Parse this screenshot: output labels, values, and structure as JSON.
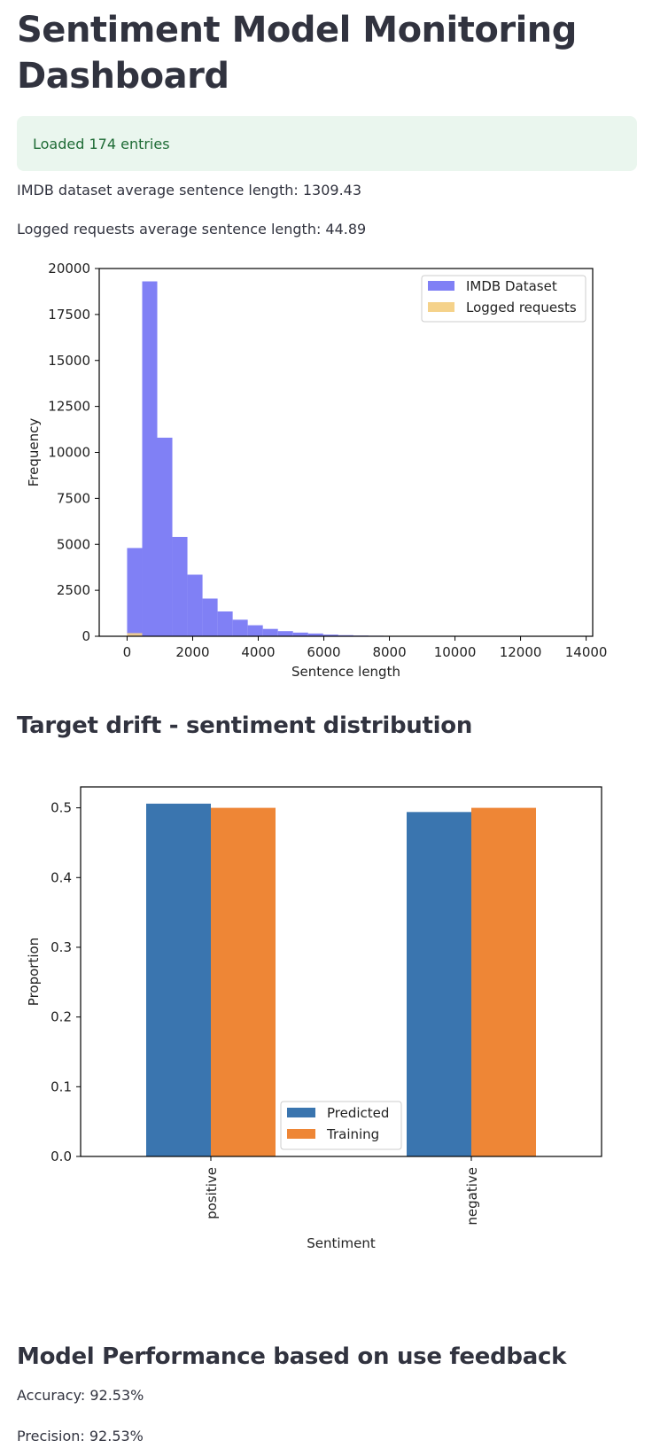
{
  "page": {
    "title": "Sentiment Model Monitoring Dashboard",
    "alert": "Loaded 174 entries",
    "imdb_avg": "IMDB dataset average sentence length: 1309.43",
    "logged_avg": "Logged requests average sentence length: 44.89",
    "section_drift": "Target drift - sentiment distribution",
    "section_perf": "Model Performance based on use feedback",
    "accuracy": "Accuracy: 92.53%",
    "precision": "Precision: 92.53%"
  },
  "chart_data": [
    {
      "type": "bar",
      "subtype": "histogram",
      "xlabel": "Sentence length",
      "ylabel": "Frequency",
      "xlim": [
        -850,
        14200
      ],
      "ylim": [
        0,
        20000
      ],
      "xticks": [
        0,
        2000,
        4000,
        6000,
        8000,
        10000,
        12000,
        14000
      ],
      "yticks": [
        0,
        2500,
        5000,
        7500,
        10000,
        12500,
        15000,
        17500,
        20000
      ],
      "legend_position": "top-right",
      "bin_edges": [
        0,
        460,
        920,
        1380,
        1840,
        2300,
        2760,
        3220,
        3680,
        4140,
        4600,
        5060,
        5520,
        5980,
        6440,
        6900,
        7360,
        7820,
        8280,
        8740,
        9200,
        9660,
        10120,
        10580,
        11040,
        11500,
        11960,
        12420,
        12880,
        13340,
        13800
      ],
      "series": [
        {
          "name": "IMDB Dataset",
          "color": "#8080f5",
          "values": [
            4800,
            19300,
            10800,
            5400,
            3350,
            2050,
            1350,
            900,
            600,
            400,
            280,
            200,
            150,
            90,
            60,
            40,
            30,
            20,
            15,
            10,
            8,
            6,
            5,
            4,
            3,
            3,
            2,
            2,
            1,
            1
          ]
        },
        {
          "name": "Logged requests",
          "color": "#f5d28a",
          "values": [
            174,
            0,
            0,
            0,
            0,
            0,
            0,
            0,
            0,
            0,
            0,
            0,
            0,
            0,
            0,
            0,
            0,
            0,
            0,
            0,
            0,
            0,
            0,
            0,
            0,
            0,
            0,
            0,
            0,
            0
          ]
        }
      ]
    },
    {
      "type": "bar",
      "xlabel": "Sentiment",
      "ylabel": "Proportion",
      "categories": [
        "positive",
        "negative"
      ],
      "ylim": [
        0,
        0.53
      ],
      "yticks": [
        0.0,
        0.1,
        0.2,
        0.3,
        0.4,
        0.5
      ],
      "ytick_labels": [
        "0.0",
        "0.1",
        "0.2",
        "0.3",
        "0.4",
        "0.5"
      ],
      "legend_position": "bottom-center",
      "series": [
        {
          "name": "Predicted",
          "color": "#3a75af",
          "values": [
            0.506,
            0.494
          ]
        },
        {
          "name": "Training",
          "color": "#ee8636",
          "values": [
            0.5,
            0.5
          ]
        }
      ]
    }
  ]
}
